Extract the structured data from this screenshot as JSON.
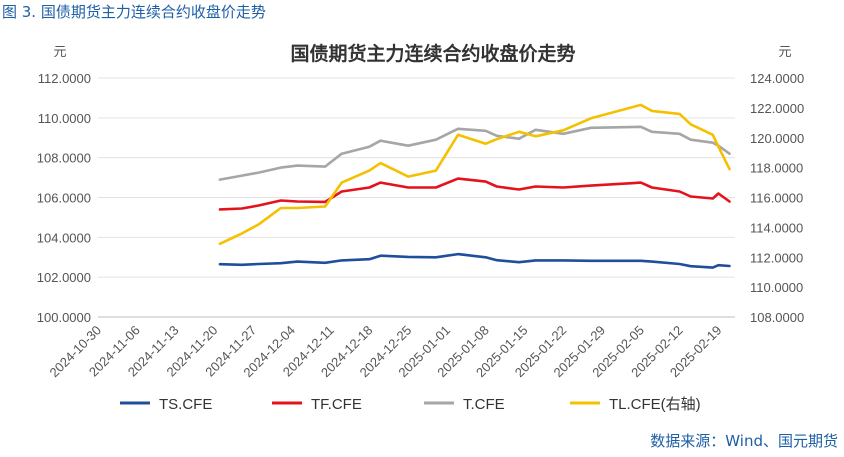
{
  "figure_label": "图 3. 国债期货主力连续合约收盘价走势",
  "source_note": "数据来源：Wind、国元期货",
  "chart_data": {
    "type": "line",
    "title": "国债期货主力连续合约收盘价走势",
    "left_unit": "元",
    "right_unit": "元",
    "ylim_left": [
      100,
      112
    ],
    "ylim_right": [
      108,
      124
    ],
    "left_ticks": [
      "100.0000",
      "102.0000",
      "104.0000",
      "106.0000",
      "108.0000",
      "110.0000",
      "112.0000"
    ],
    "right_ticks": [
      "108.0000",
      "110.0000",
      "112.0000",
      "114.0000",
      "116.0000",
      "118.0000",
      "120.0000",
      "122.0000",
      "124.0000"
    ],
    "x_ticks": [
      "2024-10-30",
      "2024-11-06",
      "2024-11-13",
      "2024-11-20",
      "2024-11-27",
      "2024-12-04",
      "2024-12-11",
      "2024-12-18",
      "2024-12-25",
      "2025-01-01",
      "2025-01-08",
      "2025-01-15",
      "2025-01-22",
      "2025-01-29",
      "2025-02-05",
      "2025-02-12",
      "2025-02-19"
    ],
    "grid": "horizontal",
    "legend_position": "bottom",
    "series": [
      {
        "name": "TS.CFE",
        "axis": "left",
        "color": "#1f4e9c",
        "dates": [
          "2024-11-21",
          "2024-11-25",
          "2024-11-28",
          "2024-12-02",
          "2024-12-05",
          "2024-12-10",
          "2024-12-13",
          "2024-12-18",
          "2024-12-20",
          "2024-12-25",
          "2024-12-30",
          "2025-01-03",
          "2025-01-08",
          "2025-01-10",
          "2025-01-14",
          "2025-01-17",
          "2025-01-22",
          "2025-01-27",
          "2025-02-05",
          "2025-02-07",
          "2025-02-12",
          "2025-02-14",
          "2025-02-18",
          "2025-02-19",
          "2025-02-21"
        ],
        "values": [
          102.65,
          102.62,
          102.66,
          102.7,
          102.78,
          102.72,
          102.84,
          102.9,
          103.08,
          103.02,
          103.0,
          103.16,
          103.0,
          102.85,
          102.75,
          102.84,
          102.84,
          102.82,
          102.82,
          102.78,
          102.66,
          102.55,
          102.48,
          102.6,
          102.56
        ]
      },
      {
        "name": "TF.CFE",
        "axis": "left",
        "color": "#e5121d",
        "dates": [
          "2024-11-21",
          "2024-11-25",
          "2024-11-28",
          "2024-12-02",
          "2024-12-05",
          "2024-12-10",
          "2024-12-13",
          "2024-12-18",
          "2024-12-20",
          "2024-12-25",
          "2024-12-30",
          "2025-01-03",
          "2025-01-08",
          "2025-01-10",
          "2025-01-14",
          "2025-01-17",
          "2025-01-22",
          "2025-01-27",
          "2025-02-05",
          "2025-02-07",
          "2025-02-12",
          "2025-02-14",
          "2025-02-18",
          "2025-02-19",
          "2025-02-21"
        ],
        "values": [
          105.4,
          105.45,
          105.6,
          105.85,
          105.8,
          105.78,
          106.3,
          106.5,
          106.75,
          106.5,
          106.5,
          106.95,
          106.8,
          106.55,
          106.4,
          106.55,
          106.5,
          106.6,
          106.75,
          106.5,
          106.3,
          106.05,
          105.95,
          106.2,
          105.8
        ]
      },
      {
        "name": "T.CFE",
        "axis": "left",
        "color": "#a6a6a6",
        "dates": [
          "2024-11-21",
          "2024-11-25",
          "2024-11-28",
          "2024-12-02",
          "2024-12-05",
          "2024-12-10",
          "2024-12-13",
          "2024-12-18",
          "2024-12-20",
          "2024-12-25",
          "2024-12-30",
          "2025-01-03",
          "2025-01-08",
          "2025-01-10",
          "2025-01-14",
          "2025-01-17",
          "2025-01-22",
          "2025-01-27",
          "2025-02-05",
          "2025-02-07",
          "2025-02-12",
          "2025-02-14",
          "2025-02-18",
          "2025-02-19",
          "2025-02-21"
        ],
        "values": [
          106.9,
          107.1,
          107.25,
          107.5,
          107.6,
          107.55,
          108.2,
          108.55,
          108.85,
          108.6,
          108.9,
          109.45,
          109.35,
          109.1,
          108.95,
          109.4,
          109.2,
          109.5,
          109.55,
          109.3,
          109.2,
          108.9,
          108.75,
          108.6,
          108.2
        ]
      },
      {
        "name": "TL.CFE(右轴)",
        "axis": "right",
        "color": "#f5c000",
        "dates": [
          "2024-11-21",
          "2024-11-25",
          "2024-11-28",
          "2024-12-02",
          "2024-12-05",
          "2024-12-10",
          "2024-12-13",
          "2024-12-18",
          "2024-12-20",
          "2024-12-25",
          "2024-12-30",
          "2025-01-03",
          "2025-01-08",
          "2025-01-10",
          "2025-01-14",
          "2025-01-17",
          "2025-01-22",
          "2025-01-27",
          "2025-02-05",
          "2025-02-07",
          "2025-02-12",
          "2025-02-14",
          "2025-02-18",
          "2025-02-19",
          "2025-02-21"
        ],
        "values": [
          112.9,
          113.6,
          114.2,
          115.3,
          115.3,
          115.4,
          117.0,
          117.8,
          118.3,
          117.4,
          117.8,
          120.2,
          119.6,
          119.9,
          120.4,
          120.1,
          120.5,
          121.3,
          122.2,
          121.8,
          121.6,
          120.9,
          120.2,
          119.4,
          117.9
        ]
      }
    ]
  }
}
